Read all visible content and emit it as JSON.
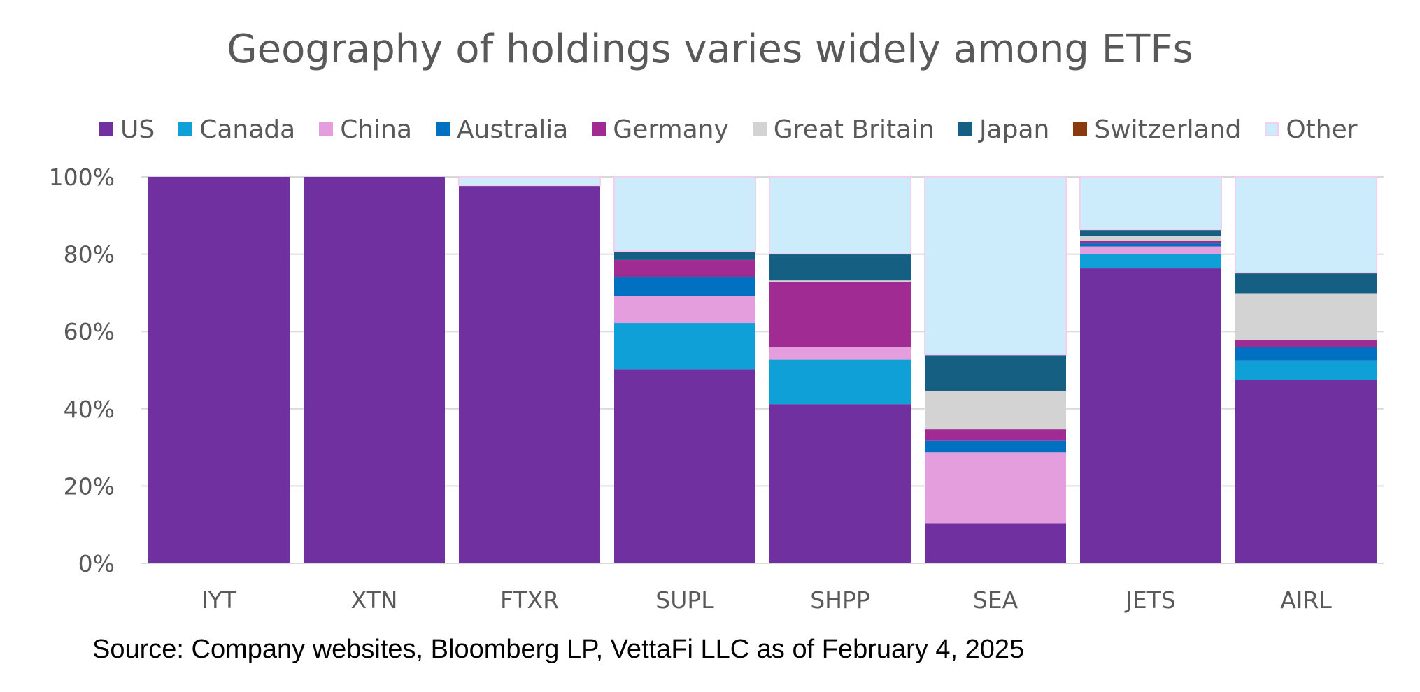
{
  "chart_data": {
    "type": "bar",
    "stacked": true,
    "title": "Geography of holdings varies widely among ETFs",
    "categories": [
      "IYT",
      "XTN",
      "FTXR",
      "SUPL",
      "SHPP",
      "SEA",
      "JETS",
      "AIRL"
    ],
    "ylim": [
      0,
      100
    ],
    "yticks": [
      0,
      20,
      40,
      60,
      80,
      100
    ],
    "ytick_labels": [
      "0%",
      "20%",
      "40%",
      "60%",
      "80%",
      "100%"
    ],
    "grid": true,
    "legend_position": "top",
    "series": [
      {
        "name": "US",
        "color": "#7030A0",
        "values": [
          100,
          100,
          97.8,
          50.2,
          41.2,
          10.4,
          76.3,
          47.5
        ]
      },
      {
        "name": "Canada",
        "color": "#0FA0D8",
        "values": [
          0,
          0,
          0,
          12.0,
          11.5,
          0,
          3.7,
          5.0
        ]
      },
      {
        "name": "China",
        "color": "#E59EDD",
        "values": [
          0,
          0,
          0,
          7.0,
          3.3,
          18.3,
          2.0,
          0
        ]
      },
      {
        "name": "Australia",
        "color": "#0070C0",
        "values": [
          0,
          0,
          0,
          4.8,
          0,
          3.0,
          0.8,
          3.5
        ]
      },
      {
        "name": "Germany",
        "color": "#A02B93",
        "values": [
          0,
          0,
          0,
          4.5,
          16.9,
          3.0,
          0.6,
          1.8
        ]
      },
      {
        "name": "Great Britain",
        "color": "#D3D3D3",
        "values": [
          0,
          0,
          0,
          0,
          0.3,
          9.8,
          1.3,
          12.1
        ]
      },
      {
        "name": "Japan",
        "color": "#156082",
        "values": [
          0,
          0,
          0,
          2.3,
          6.9,
          9.5,
          1.7,
          5.3
        ]
      },
      {
        "name": "Switzerland",
        "color": "#8B3A0F",
        "values": [
          0,
          0,
          0,
          0,
          0,
          0,
          0,
          0
        ]
      },
      {
        "name": "Other",
        "color": "#CCECFB",
        "values": [
          0,
          0,
          2.2,
          19.2,
          19.9,
          46.0,
          13.6,
          24.8
        ]
      }
    ]
  },
  "source_note": "Source: Company websites, Bloomberg LP, VettaFi LLC as of February 4, 2025",
  "colors": {
    "other_border": "#F2CEEF",
    "gridline": "#D9D9D9",
    "axis_text": "#595959"
  }
}
